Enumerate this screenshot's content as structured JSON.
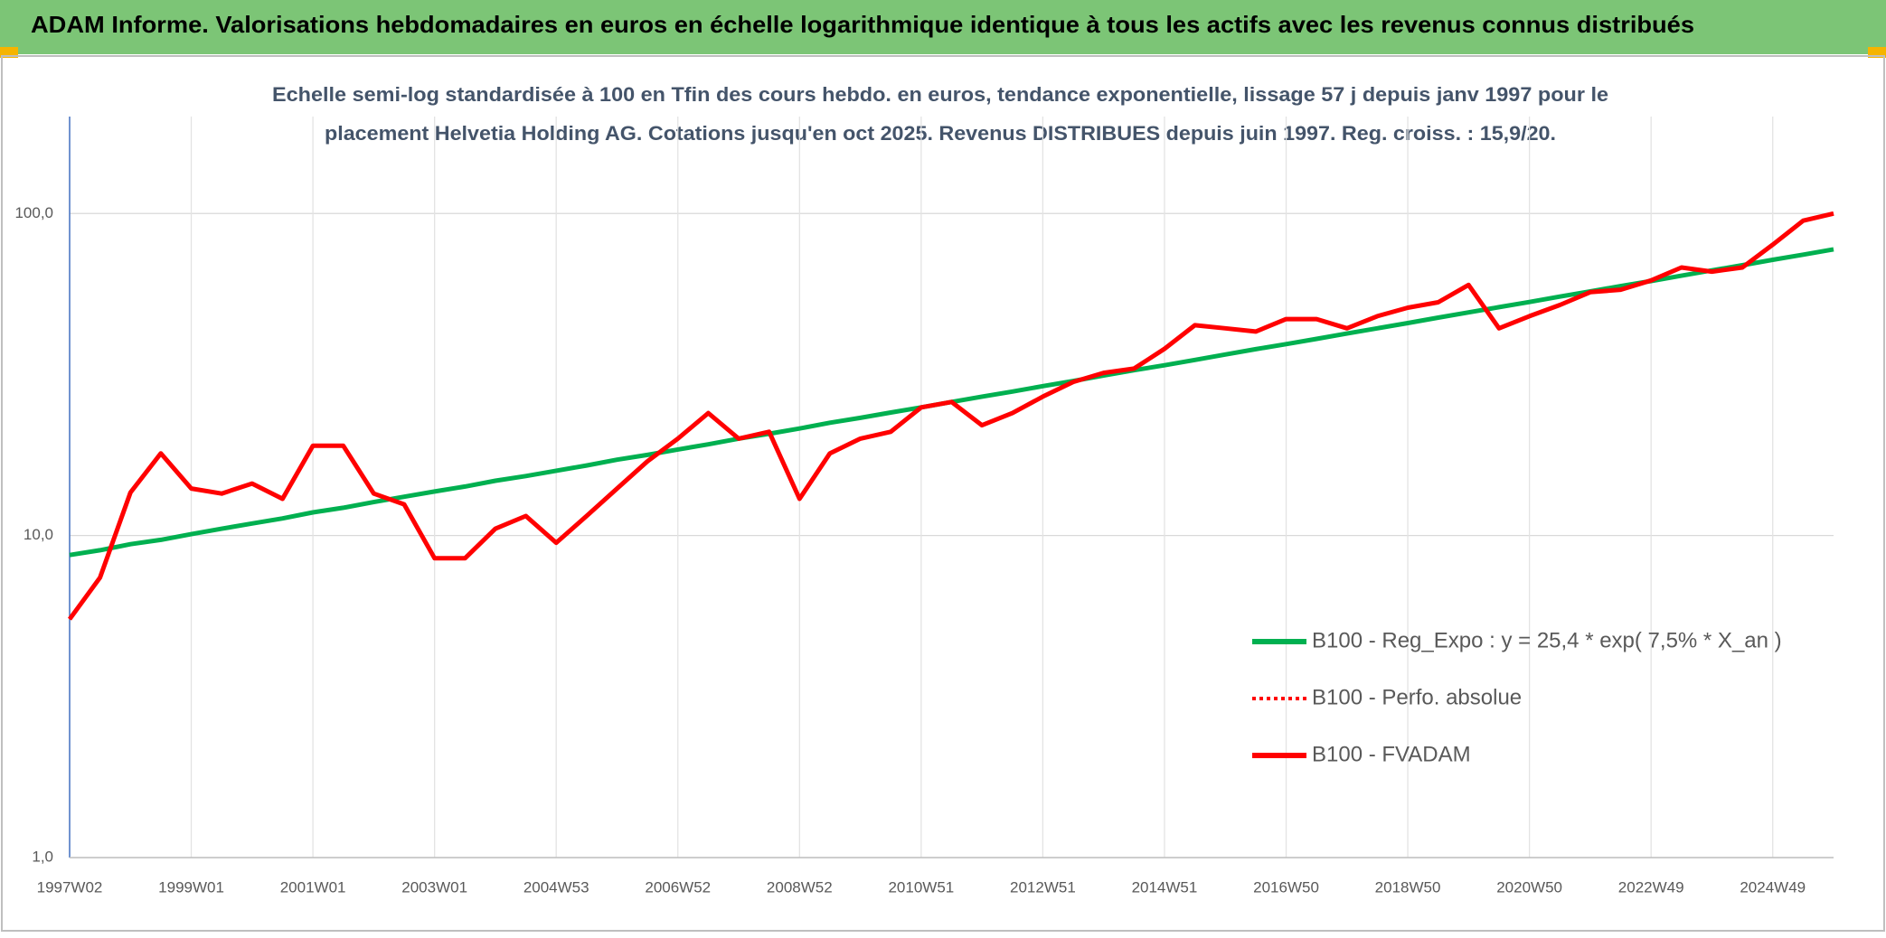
{
  "header": {
    "title": "ADAM Informe. Valorisations hebdomadaires en euros en échelle logarithmique identique à tous les actifs avec les revenus connus distribués"
  },
  "chart_data": {
    "type": "line",
    "title": [
      "Echelle semi-log standardisée à 100 en Tfin des cours hebdo. en euros, tendance exponentielle, lissage 57 j depuis janv 1997 pour le",
      "placement Helvetia Holding AG. Cotations jusqu'en oct 2025. Revenus DISTRIBUES depuis juin 1997. Reg. croiss. : 15,9/20."
    ],
    "categories": [
      "1997W02",
      null,
      null,
      null,
      "1999W01",
      null,
      null,
      null,
      "2001W01",
      null,
      null,
      null,
      "2003W01",
      null,
      null,
      null,
      "2004W53",
      null,
      null,
      null,
      "2006W52",
      null,
      null,
      null,
      "2008W52",
      null,
      null,
      null,
      "2010W51",
      null,
      null,
      null,
      "2012W51",
      null,
      null,
      null,
      "2014W51",
      null,
      null,
      null,
      "2016W50",
      null,
      null,
      null,
      "2018W50",
      null,
      null,
      null,
      "2020W50",
      null,
      null,
      null,
      "2022W49",
      null,
      null,
      null,
      "2024W49",
      null,
      null
    ],
    "series": [
      {
        "name": "B100 - Reg_Expo : y = 25,4 * exp( 7,5% *  X_an )",
        "color": "#00b050",
        "dash": false,
        "values": [
          8.7,
          9.0,
          9.4,
          9.7,
          10.1,
          10.5,
          10.9,
          11.3,
          11.8,
          12.2,
          12.7,
          13.2,
          13.7,
          14.2,
          14.8,
          15.3,
          15.9,
          16.5,
          17.2,
          17.8,
          18.5,
          19.2,
          20.0,
          20.7,
          21.5,
          22.4,
          23.2,
          24.1,
          25.0,
          26.0,
          27.0,
          28.0,
          29.1,
          30.2,
          31.4,
          32.6,
          33.8,
          35.1,
          36.5,
          37.9,
          39.3,
          40.8,
          42.4,
          44.0,
          45.7,
          47.5,
          49.3,
          51.2,
          53.1,
          55.2,
          57.3,
          59.5,
          61.7,
          64.1,
          66.6,
          69.1,
          71.8,
          74.5,
          77.4
        ]
      },
      {
        "name": "B100 - Perfo. absolue",
        "color": "#ff0000",
        "dash": true,
        "values": [
          5.5,
          7.4,
          13.6,
          18,
          14,
          13.5,
          14.5,
          13,
          19,
          19,
          13.5,
          12.5,
          8.5,
          8.5,
          10.5,
          11.5,
          9.5,
          11.5,
          14,
          17,
          20,
          24,
          20,
          21,
          13,
          18,
          20,
          21,
          25,
          26,
          22,
          24,
          27,
          30,
          32,
          33,
          38,
          45,
          44,
          43,
          47,
          47,
          44,
          48,
          51,
          53,
          60,
          44,
          48,
          52,
          57,
          58,
          62,
          68,
          66,
          68,
          80,
          95,
          100
        ]
      },
      {
        "name": "B100 - FVADAM",
        "color": "#ff0000",
        "dash": false,
        "values": [
          5.5,
          7.4,
          13.6,
          18,
          14,
          13.5,
          14.5,
          13,
          19,
          19,
          13.5,
          12.5,
          8.5,
          8.5,
          10.5,
          11.5,
          9.5,
          11.5,
          14,
          17,
          20,
          24,
          20,
          21,
          13,
          18,
          20,
          21,
          25,
          26,
          22,
          24,
          27,
          30,
          32,
          33,
          38,
          45,
          44,
          43,
          47,
          47,
          44,
          48,
          51,
          53,
          60,
          44,
          48,
          52,
          57,
          58,
          62,
          68,
          66,
          68,
          80,
          95,
          100
        ]
      }
    ],
    "ylim": [
      1,
      200
    ],
    "yticks": [
      {
        "value": 1,
        "label": "1,0"
      },
      {
        "value": 10,
        "label": "10,0"
      },
      {
        "value": 100,
        "label": "100,0"
      }
    ],
    "log_scale": true,
    "grid": true,
    "legend": "lower right"
  }
}
